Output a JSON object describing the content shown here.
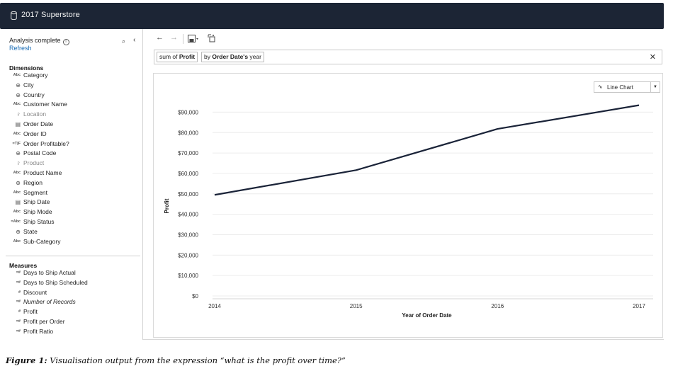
{
  "app": {
    "title": "2017 Superstore"
  },
  "sidebar": {
    "status": "Analysis complete",
    "refresh": "Refresh",
    "dimensions_title": "Dimensions",
    "dimensions": [
      {
        "icon": "Abc",
        "label": "Category",
        "style": "normal"
      },
      {
        "icon": "globe-icon",
        "label": "City",
        "style": "normal"
      },
      {
        "icon": "globe-icon",
        "label": "Country",
        "style": "normal"
      },
      {
        "icon": "Abc",
        "label": "Customer Name",
        "style": "normal"
      },
      {
        "icon": "hierarchy-icon",
        "label": "Location",
        "style": "dim"
      },
      {
        "icon": "calendar-icon",
        "label": "Order Date",
        "style": "normal"
      },
      {
        "icon": "Abc",
        "label": "Order ID",
        "style": "normal"
      },
      {
        "icon": "=T|F",
        "label": "Order Profitable?",
        "style": "normal"
      },
      {
        "icon": "globe-icon",
        "label": "Postal Code",
        "style": "normal"
      },
      {
        "icon": "hierarchy-icon",
        "label": "Product",
        "style": "dim"
      },
      {
        "icon": "Abc",
        "label": "Product Name",
        "style": "normal"
      },
      {
        "icon": "globe-icon",
        "label": "Region",
        "style": "normal"
      },
      {
        "icon": "Abc",
        "label": "Segment",
        "style": "normal"
      },
      {
        "icon": "calendar-icon",
        "label": "Ship Date",
        "style": "normal"
      },
      {
        "icon": "Abc",
        "label": "Ship Mode",
        "style": "normal"
      },
      {
        "icon": "=Abc",
        "label": "Ship Status",
        "style": "normal"
      },
      {
        "icon": "globe-icon",
        "label": "State",
        "style": "normal"
      },
      {
        "icon": "Abc",
        "label": "Sub-Category",
        "style": "normal"
      }
    ],
    "measures_title": "Measures",
    "measures": [
      {
        "icon": "=#",
        "label": "Days to Ship Actual",
        "style": "normal"
      },
      {
        "icon": "=#",
        "label": "Days to Ship Scheduled",
        "style": "normal"
      },
      {
        "icon": "#",
        "label": "Discount",
        "style": "normal"
      },
      {
        "icon": "=#",
        "label": "Number of Records",
        "style": "italic"
      },
      {
        "icon": "#",
        "label": "Profit",
        "style": "normal"
      },
      {
        "icon": "=#",
        "label": "Profit per Order",
        "style": "normal"
      },
      {
        "icon": "=#",
        "label": "Profit Ratio",
        "style": "normal"
      }
    ]
  },
  "query": {
    "pill1_prefix": "sum of",
    "pill1_field": "Profit",
    "pill2_prefix": "by",
    "pill2_field": "Order Date's",
    "pill2_suffix": "year"
  },
  "chart_selector": {
    "label": "Line Chart"
  },
  "chart_data": {
    "type": "line",
    "x": [
      "2014",
      "2015",
      "2016",
      "2017"
    ],
    "series": [
      {
        "values": [
          49500,
          61600,
          81800,
          93400
        ]
      }
    ],
    "xlabel": "Year of Order Date",
    "ylabel": "Profit",
    "ylim": [
      0,
      95000
    ],
    "yticks": [
      0,
      10000,
      20000,
      30000,
      40000,
      50000,
      60000,
      70000,
      80000,
      90000
    ],
    "ytick_labels": [
      "$0",
      "$10,000",
      "$20,000",
      "$30,000",
      "$40,000",
      "$50,000",
      "$60,000",
      "$70,000",
      "$80,000",
      "$90,000"
    ],
    "grid": true,
    "line_color": "#1a2338"
  },
  "caption": {
    "label": "Figure 1:",
    "text": " Visualisation output from the expression “what is the profit over time?”"
  }
}
